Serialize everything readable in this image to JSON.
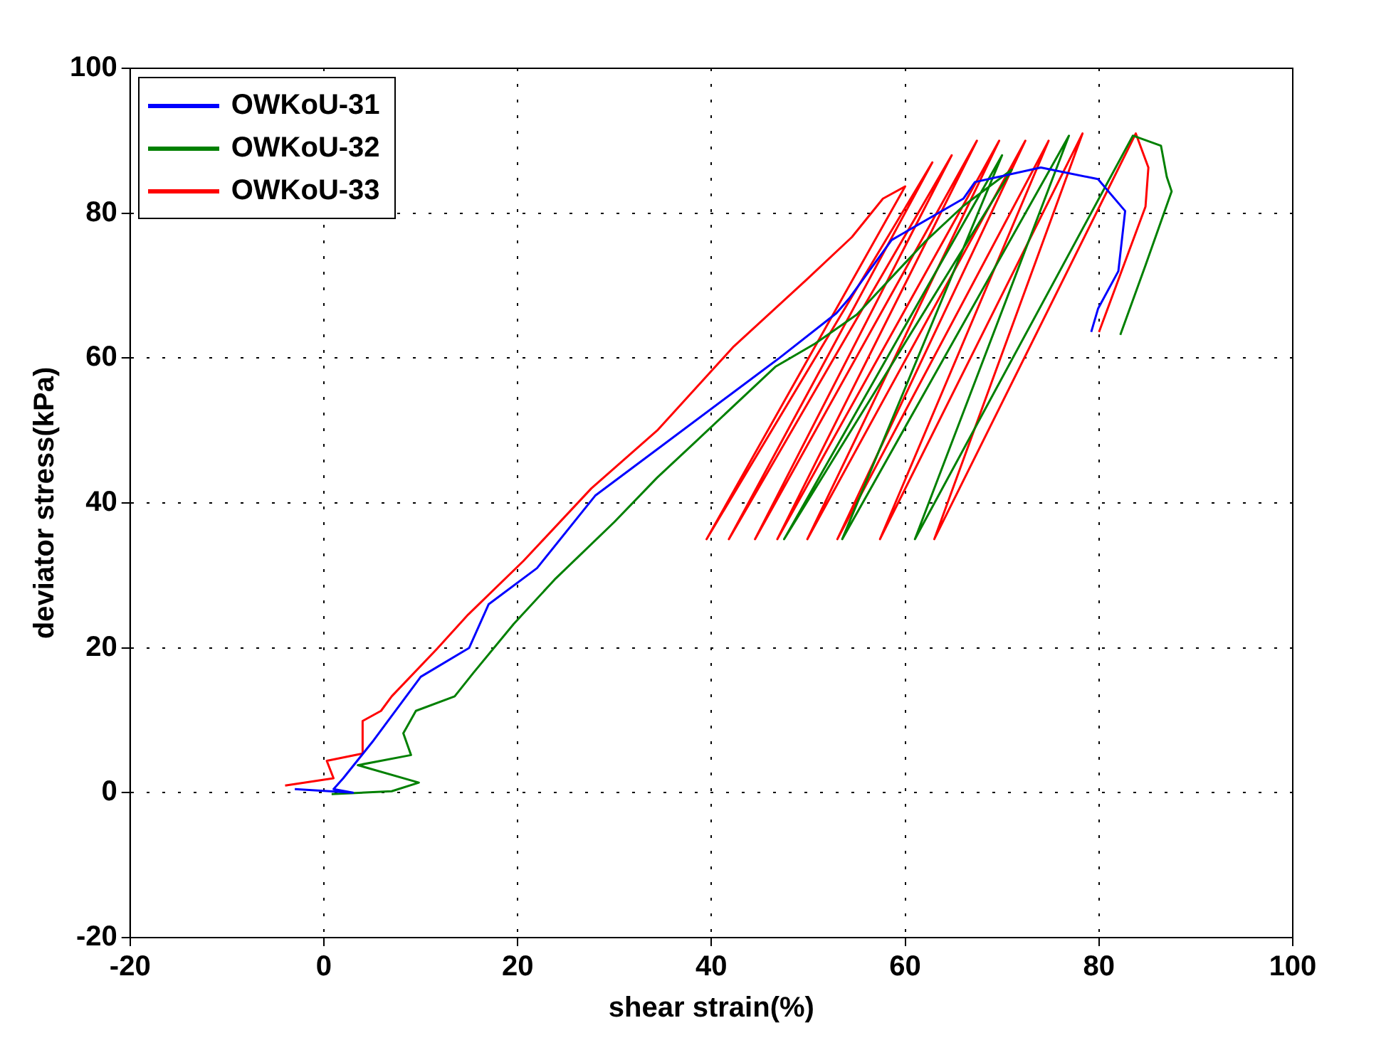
{
  "chart_data": {
    "type": "line",
    "xlabel": "shear strain(%)",
    "ylabel": "deviator stress(kPa)",
    "xlim": [
      -20,
      100
    ],
    "ylim": [
      -20,
      100
    ],
    "xticks": [
      -20,
      0,
      20,
      40,
      60,
      80,
      100
    ],
    "yticks": [
      -20,
      0,
      20,
      40,
      60,
      80,
      100
    ],
    "grid": true,
    "legend": "top left",
    "series": [
      {
        "name": "OWKoU-31",
        "color": "#0000ff",
        "x": [
          -3,
          3,
          1,
          2,
          5,
          10,
          15,
          17,
          22,
          28,
          35,
          42,
          47,
          52.9,
          54.2,
          58.6,
          66,
          67.2,
          74,
          79.9,
          82.7,
          82,
          79.9,
          79.2
        ],
        "values": [
          0.5,
          0,
          0.5,
          2,
          7,
          16,
          20,
          26,
          31,
          41,
          48,
          55,
          60,
          66.2,
          68.2,
          76.3,
          82,
          84.3,
          86.3,
          84.7,
          80.3,
          72,
          66.8,
          63.6
        ]
      },
      {
        "name": "OWKoU-32",
        "color": "#008000",
        "x": [
          0.8,
          7,
          9.8,
          3.5,
          9,
          8.2,
          9.5,
          13.5,
          15.4,
          19.6,
          23.8,
          30,
          34.4,
          38,
          46.6,
          50.7,
          55,
          62,
          66,
          71,
          47.5,
          70,
          53.5,
          76.9,
          61,
          83.5,
          86.4,
          87,
          87.5,
          84.8,
          82.2
        ],
        "values": [
          -0.2,
          0.2,
          1.4,
          3.8,
          5.2,
          8.2,
          11.3,
          13.3,
          16.5,
          23.3,
          29.4,
          37.4,
          43.5,
          48,
          58.8,
          62,
          66,
          76,
          81,
          86,
          35,
          88,
          35,
          90.7,
          35,
          90.7,
          89.3,
          85,
          83,
          72.8,
          63.2
        ]
      },
      {
        "name": "OWKoU-33",
        "color": "#ff0000",
        "x": [
          -4,
          1,
          0.3,
          4,
          4,
          5.9,
          7,
          11.7,
          14.9,
          20.6,
          27.6,
          34.4,
          42.3,
          49.8,
          54.5,
          57.7,
          60,
          39.5,
          62.8,
          41.8,
          64.8,
          44.5,
          67.4,
          46.8,
          69.7,
          49.9,
          72.4,
          53,
          74.8,
          57.4,
          78.3,
          63,
          83.8,
          85.1,
          84.8,
          80
        ],
        "values": [
          1,
          2,
          4.4,
          5.4,
          9.9,
          11.3,
          13.3,
          19.9,
          24.6,
          32,
          42,
          50,
          61.6,
          70.8,
          76.7,
          82,
          83.7,
          35,
          87,
          35,
          88,
          35,
          90,
          35,
          90,
          35,
          90,
          35,
          90,
          35,
          91,
          35,
          91,
          86.3,
          80.9,
          63.6
        ]
      }
    ]
  }
}
